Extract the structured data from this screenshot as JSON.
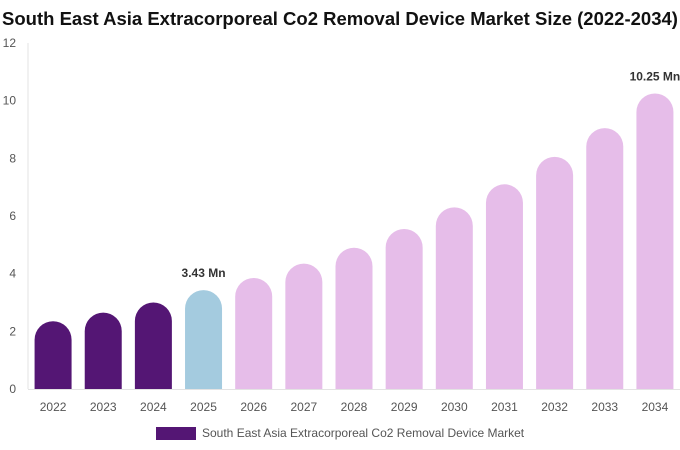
{
  "chart_data": {
    "type": "bar",
    "title": "South East Asia Extracorporeal Co2 Removal Device Market Size (2022-2034)",
    "categories": [
      "2022",
      "2023",
      "2024",
      "2025",
      "2026",
      "2027",
      "2028",
      "2029",
      "2030",
      "2031",
      "2032",
      "2033",
      "2034"
    ],
    "series": [
      {
        "name": "South East Asia Extracorporeal Co2 Removal Device Market",
        "values": [
          2.35,
          2.65,
          3.0,
          3.43,
          3.85,
          4.35,
          4.9,
          5.55,
          6.3,
          7.1,
          8.05,
          9.05,
          10.25
        ]
      }
    ],
    "bar_colors": [
      "#541674",
      "#541674",
      "#541674",
      "#a4cbdf",
      "#e6bde9",
      "#e6bde9",
      "#e6bde9",
      "#e6bde9",
      "#e6bde9",
      "#e6bde9",
      "#e6bde9",
      "#e6bde9",
      "#e6bde9"
    ],
    "annotations": [
      {
        "category": "2025",
        "text": "3.43 Mn"
      },
      {
        "category": "2034",
        "text": "10.25 Mn"
      }
    ],
    "ylim": [
      0,
      12
    ],
    "yticks": [
      0,
      2,
      4,
      6,
      8,
      10,
      12
    ],
    "grid": false,
    "legend_position": "bottom"
  }
}
